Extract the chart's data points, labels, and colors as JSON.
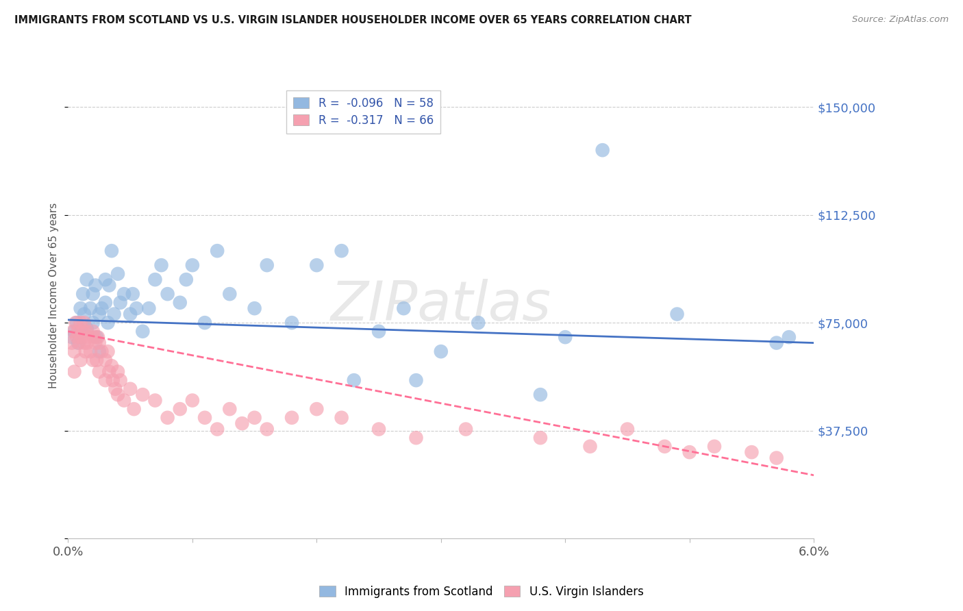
{
  "title": "IMMIGRANTS FROM SCOTLAND VS U.S. VIRGIN ISLANDER HOUSEHOLDER INCOME OVER 65 YEARS CORRELATION CHART",
  "source": "Source: ZipAtlas.com",
  "ylabel": "Householder Income Over 65 years",
  "xlim": [
    0.0,
    0.06
  ],
  "ylim": [
    0,
    168750
  ],
  "xticks": [
    0.0,
    0.01,
    0.02,
    0.03,
    0.04,
    0.05,
    0.06
  ],
  "xticklabels": [
    "0.0%",
    "",
    "",
    "",
    "",
    "",
    "6.0%"
  ],
  "ytick_values": [
    0,
    37500,
    75000,
    112500,
    150000
  ],
  "ytick_labels": [
    "",
    "$37,500",
    "$75,000",
    "$112,500",
    "$150,000"
  ],
  "scotland_R": -0.096,
  "scotland_N": 58,
  "virgin_R": -0.317,
  "virgin_N": 66,
  "scotland_color": "#93B8E0",
  "virgin_color": "#F5A0B0",
  "scotland_line_color": "#4472C4",
  "virgin_line_color": "#FF7096",
  "watermark": "ZIPatlas",
  "scotland_x": [
    0.0003,
    0.0005,
    0.0007,
    0.0008,
    0.001,
    0.001,
    0.0012,
    0.0013,
    0.0015,
    0.0015,
    0.0018,
    0.002,
    0.002,
    0.0022,
    0.0023,
    0.0025,
    0.0025,
    0.0027,
    0.003,
    0.003,
    0.0032,
    0.0033,
    0.0035,
    0.0037,
    0.004,
    0.0042,
    0.0045,
    0.005,
    0.0052,
    0.0055,
    0.006,
    0.0065,
    0.007,
    0.0075,
    0.008,
    0.009,
    0.0095,
    0.01,
    0.011,
    0.012,
    0.013,
    0.015,
    0.016,
    0.018,
    0.02,
    0.022,
    0.023,
    0.025,
    0.027,
    0.028,
    0.03,
    0.033,
    0.038,
    0.04,
    0.043,
    0.049,
    0.057,
    0.058
  ],
  "scotland_y": [
    70000,
    72000,
    75000,
    68000,
    80000,
    72000,
    85000,
    78000,
    73000,
    90000,
    80000,
    75000,
    85000,
    88000,
    70000,
    78000,
    65000,
    80000,
    90000,
    82000,
    75000,
    88000,
    100000,
    78000,
    92000,
    82000,
    85000,
    78000,
    85000,
    80000,
    72000,
    80000,
    90000,
    95000,
    85000,
    82000,
    90000,
    95000,
    75000,
    100000,
    85000,
    80000,
    95000,
    75000,
    95000,
    100000,
    55000,
    72000,
    80000,
    55000,
    65000,
    75000,
    50000,
    70000,
    135000,
    78000,
    68000,
    70000
  ],
  "virgin_x": [
    0.0003,
    0.0004,
    0.0005,
    0.0005,
    0.0006,
    0.0007,
    0.0008,
    0.0009,
    0.001,
    0.001,
    0.0011,
    0.0012,
    0.0013,
    0.0013,
    0.0014,
    0.0015,
    0.0015,
    0.0016,
    0.0018,
    0.002,
    0.002,
    0.0021,
    0.0022,
    0.0023,
    0.0024,
    0.0025,
    0.0025,
    0.0027,
    0.003,
    0.003,
    0.0032,
    0.0033,
    0.0035,
    0.0036,
    0.0038,
    0.004,
    0.004,
    0.0042,
    0.0045,
    0.005,
    0.0053,
    0.006,
    0.007,
    0.008,
    0.009,
    0.01,
    0.011,
    0.012,
    0.013,
    0.014,
    0.015,
    0.016,
    0.018,
    0.02,
    0.022,
    0.025,
    0.028,
    0.032,
    0.038,
    0.042,
    0.045,
    0.048,
    0.05,
    0.052,
    0.055,
    0.057
  ],
  "virgin_y": [
    68000,
    72000,
    65000,
    58000,
    75000,
    70000,
    72000,
    68000,
    75000,
    62000,
    70000,
    72000,
    75000,
    68000,
    65000,
    72000,
    68000,
    70000,
    65000,
    72000,
    62000,
    70000,
    68000,
    62000,
    70000,
    68000,
    58000,
    65000,
    62000,
    55000,
    65000,
    58000,
    60000,
    55000,
    52000,
    58000,
    50000,
    55000,
    48000,
    52000,
    45000,
    50000,
    48000,
    42000,
    45000,
    48000,
    42000,
    38000,
    45000,
    40000,
    42000,
    38000,
    42000,
    45000,
    42000,
    38000,
    35000,
    38000,
    35000,
    32000,
    38000,
    32000,
    30000,
    32000,
    30000,
    28000
  ],
  "sc_line_x0": 0.0,
  "sc_line_x1": 0.06,
  "sc_line_y0": 76000,
  "sc_line_y1": 68000,
  "vi_line_x0": 0.0,
  "vi_line_x1": 0.06,
  "vi_line_y0": 72000,
  "vi_line_y1": 22000
}
